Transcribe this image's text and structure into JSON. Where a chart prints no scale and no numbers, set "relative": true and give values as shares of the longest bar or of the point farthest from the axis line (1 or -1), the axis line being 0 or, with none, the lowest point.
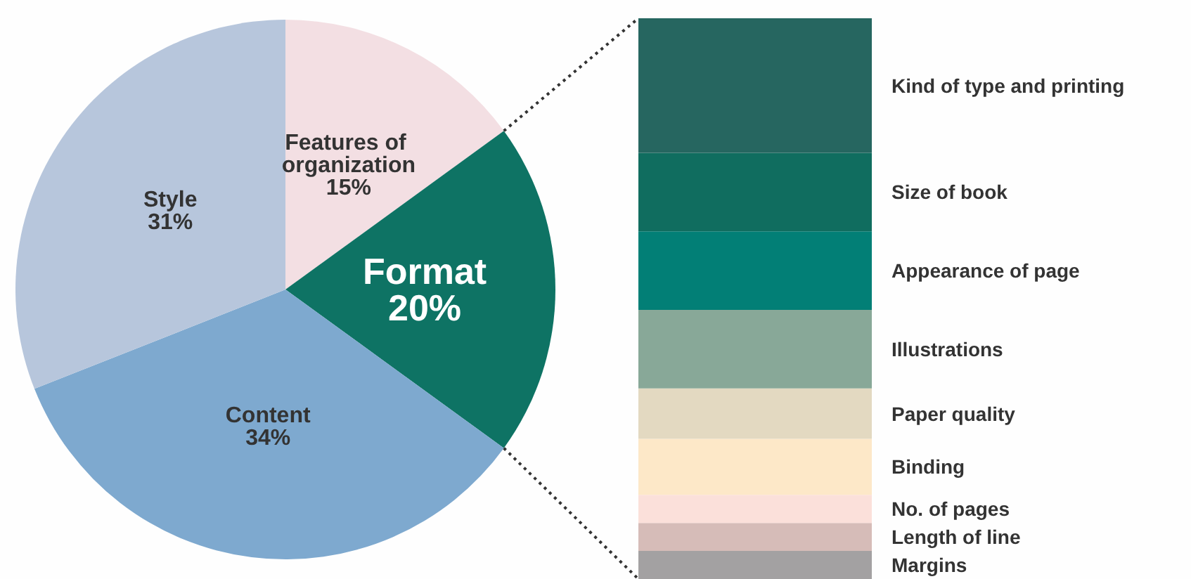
{
  "chart_data": [
    {
      "type": "pie",
      "categories": [
        "Features of organization",
        "Format",
        "Content",
        "Style"
      ],
      "values": [
        15,
        20,
        34,
        31
      ],
      "colors": [
        "#f3dfe3",
        "#0e7364",
        "#7ea9cf",
        "#b7c6dc"
      ],
      "value_labels": [
        "15%",
        "20%",
        "34%",
        "31%"
      ]
    },
    {
      "type": "bar",
      "stacked": true,
      "relative": true,
      "categories": [
        null
      ],
      "series": [
        {
          "name": "Margins",
          "color": "#a3a1a2",
          "values": [
            0.05
          ]
        },
        {
          "name": "Length of line",
          "color": "#d6bcb8",
          "values": [
            0.05
          ]
        },
        {
          "name": "No. of pages",
          "color": "#fbe0da",
          "values": [
            0.05
          ]
        },
        {
          "name": "Binding",
          "color": "#fde8c8",
          "values": [
            0.1
          ]
        },
        {
          "name": "Paper quality",
          "color": "#e3d9c1",
          "values": [
            0.09
          ]
        },
        {
          "name": "Illustrations",
          "color": "#88a898",
          "values": [
            0.14
          ]
        },
        {
          "name": "Appearance of page",
          "color": "#027f76",
          "values": [
            0.14
          ]
        },
        {
          "name": "Size of book",
          "color": "#106d5f",
          "values": [
            0.14
          ]
        },
        {
          "name": "Kind of type and printing",
          "color": "#266660",
          "values": [
            0.24
          ]
        }
      ]
    }
  ]
}
